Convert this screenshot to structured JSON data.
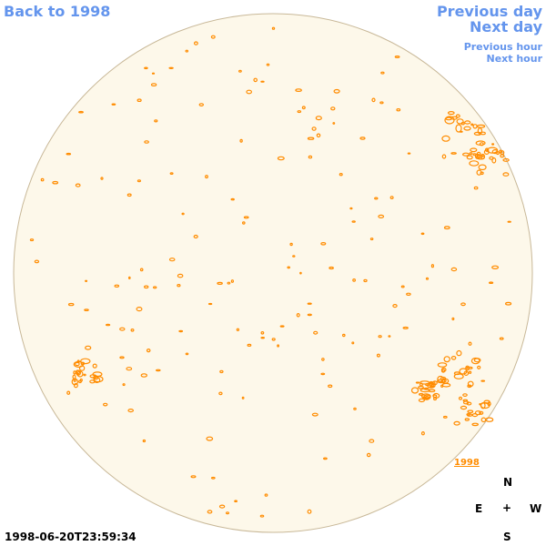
{
  "navigation": {
    "back_label": "Back to 1998",
    "prev_day_label": "Previous day",
    "next_day_label": "Next day",
    "prev_hour_label": "Previous hour",
    "next_hour_label": "Next hour"
  },
  "image": {
    "timestamp": "1998-06-20T23:59:34",
    "year_tag": "1998",
    "disk_color": "#FDF8EA",
    "limb_color": "#C8B898",
    "contour_color": "#FF8C00",
    "link_color": "#6495ED"
  },
  "compass": {
    "north": "N",
    "east": "E",
    "center": "+",
    "west": "W",
    "south": "S"
  }
}
